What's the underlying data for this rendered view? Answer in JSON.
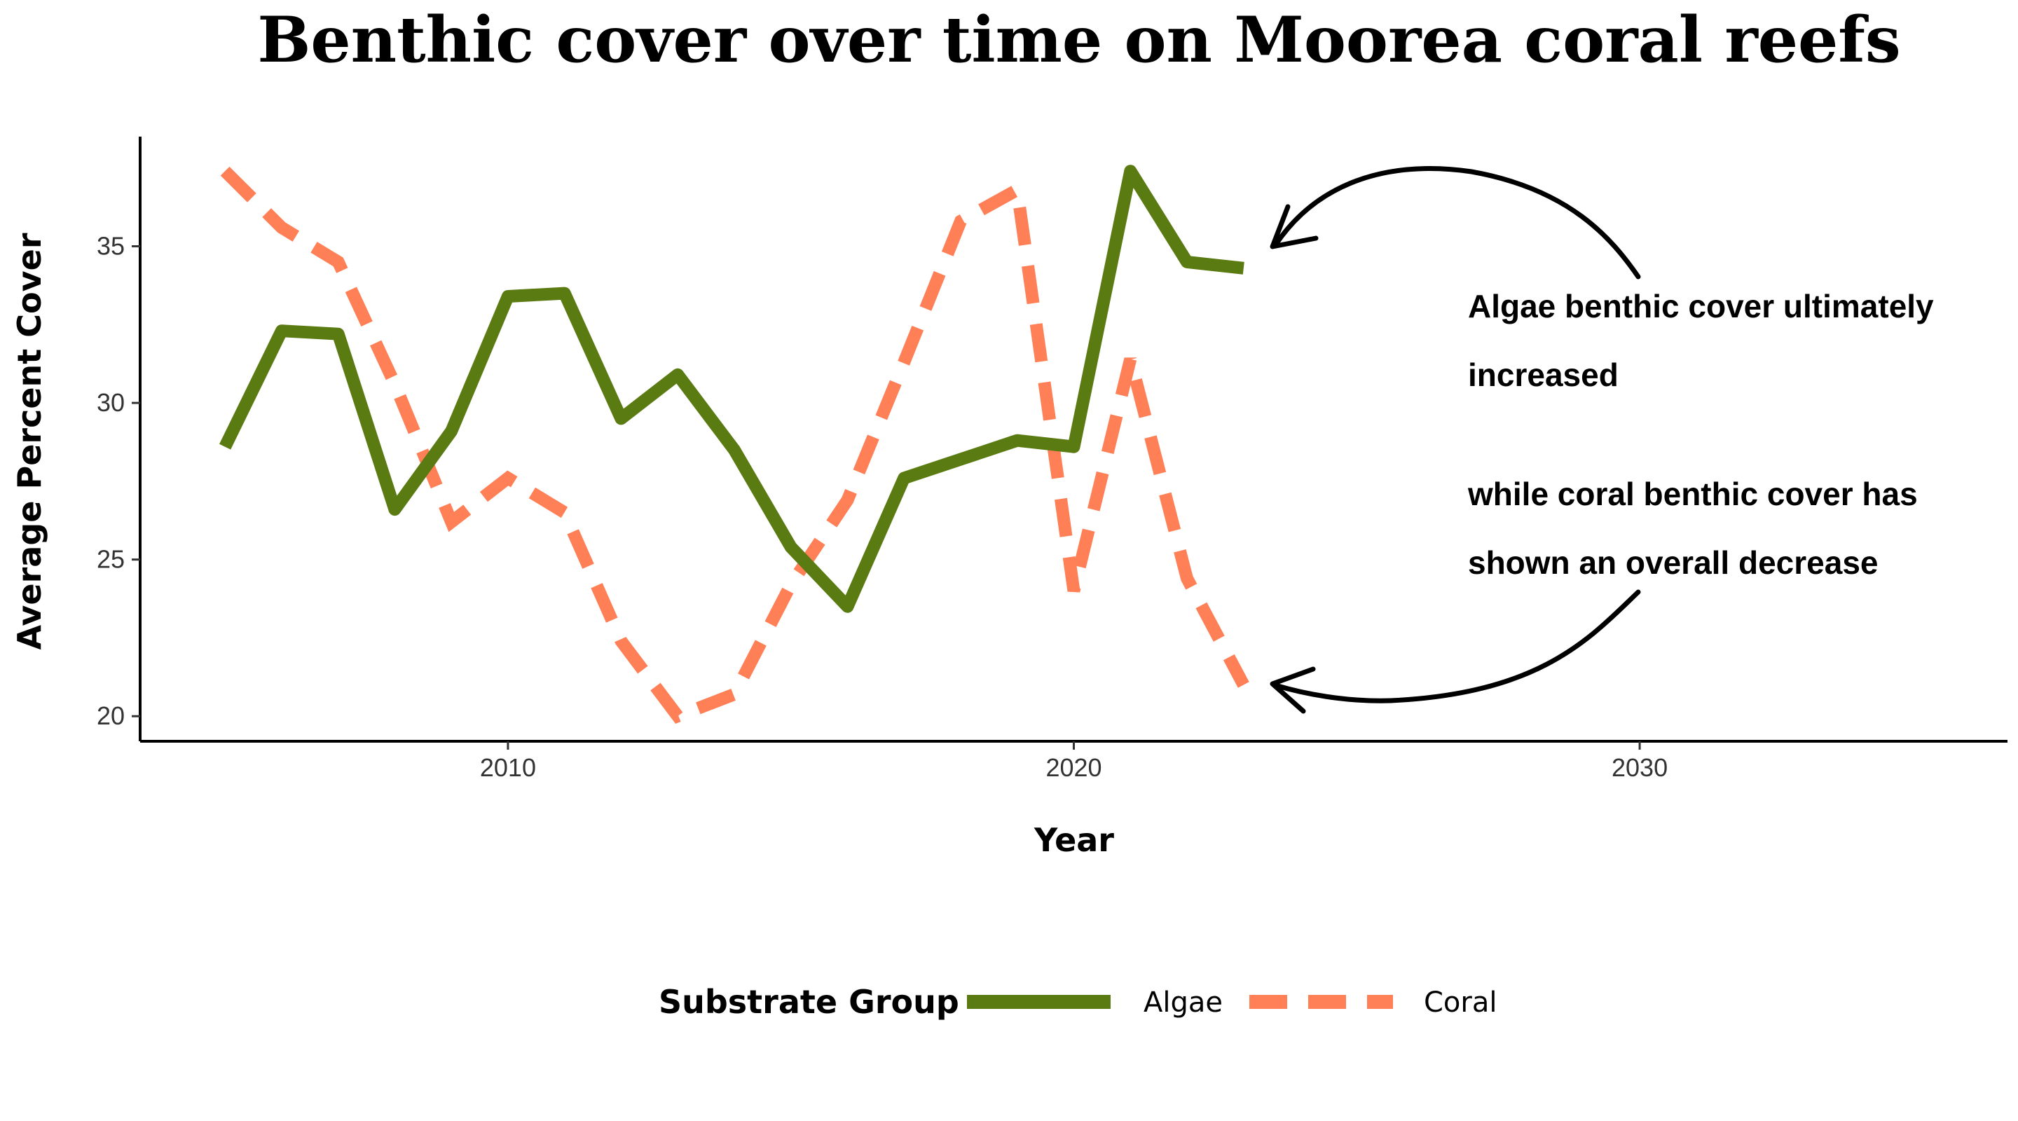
{
  "chart_data": {
    "type": "line",
    "title": "Benthic cover over time on Moorea coral reefs",
    "xlabel": "Year",
    "ylabel": "Average Percent Cover",
    "xlim": [
      2003.5,
      2036.5
    ],
    "ylim": [
      19.2,
      38.5
    ],
    "x_ticks": [
      2010,
      2020,
      2030
    ],
    "y_ticks": [
      20,
      25,
      30,
      35
    ],
    "x": [
      2005,
      2006,
      2007,
      2008,
      2009,
      2010,
      2011,
      2012,
      2013,
      2014,
      2015,
      2016,
      2017,
      2018,
      2019,
      2020,
      2021,
      2022,
      2023
    ],
    "series": [
      {
        "name": "Algae",
        "color": "#5a7a12",
        "style": "solid",
        "values": [
          28.6,
          32.3,
          32.2,
          26.6,
          29.1,
          33.4,
          33.5,
          29.5,
          30.9,
          28.5,
          25.4,
          23.5,
          27.6,
          28.2,
          28.8,
          28.6,
          37.4,
          34.5,
          34.3
        ]
      },
      {
        "name": "Coral",
        "color": "#ff8057",
        "style": "dashed",
        "values": [
          37.4,
          35.6,
          34.5,
          30.6,
          26.2,
          27.6,
          26.5,
          22.4,
          20.0,
          20.7,
          24.2,
          26.9,
          31.3,
          35.8,
          36.8,
          24.0,
          31.4,
          24.4,
          21.0
        ]
      }
    ],
    "annotations": [
      {
        "text": "Algae benthic cover ultimately",
        "x": 2027.8,
        "y": 33.0
      },
      {
        "text": "increased",
        "x": 2027.8,
        "y": 30.8
      },
      {
        "text": "while coral benthic cover has",
        "x": 2027.8,
        "y": 27.0
      },
      {
        "text": "shown an overall decrease",
        "x": 2027.8,
        "y": 24.8
      }
    ],
    "legend": {
      "title": "Substrate Group",
      "position": "bottom",
      "items": [
        "Algae",
        "Coral"
      ]
    },
    "grid": false
  }
}
